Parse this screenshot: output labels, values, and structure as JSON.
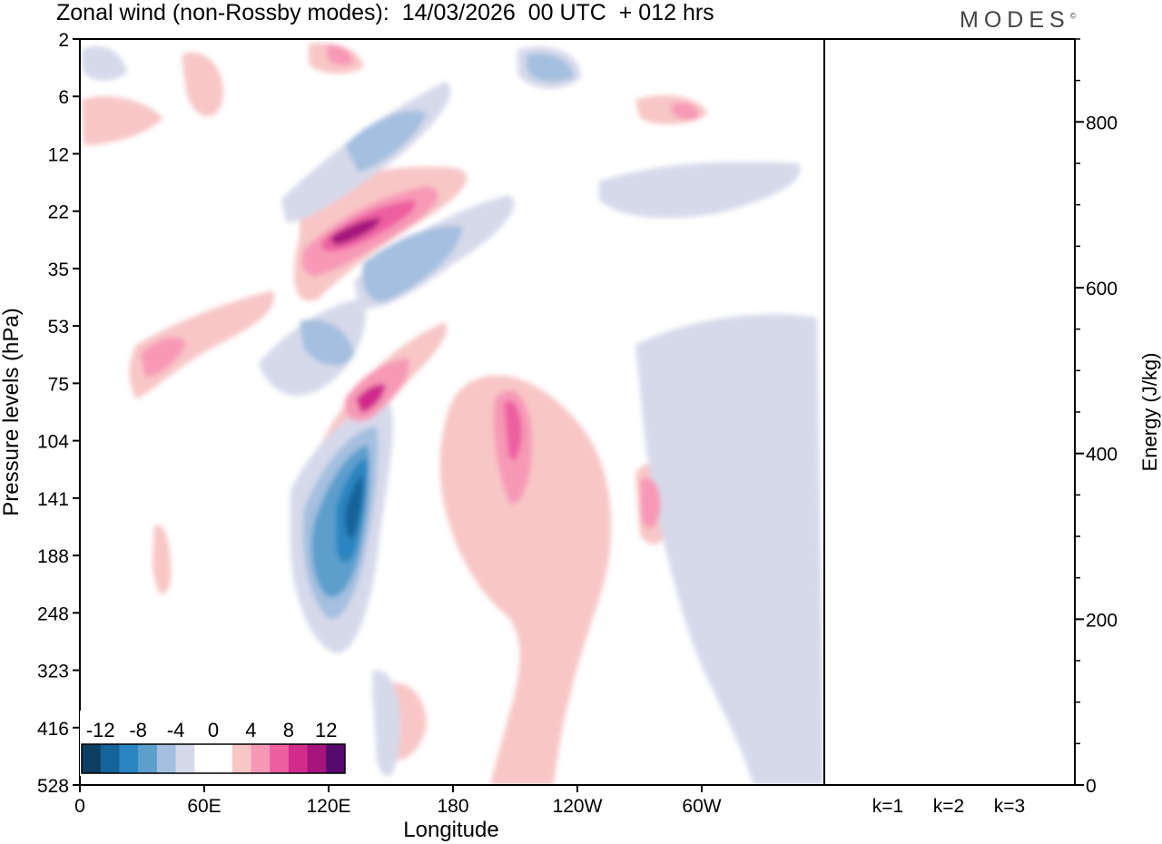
{
  "chart_data": [
    {
      "type": "heatmap",
      "title": "Zonal wind (non-Rossby modes):  14/03/2026  00 UTC  + 012 hrs",
      "xlabel": "Longitude",
      "ylabel": "Pressure levels (hPa)",
      "x_ticks": [
        "0",
        "60E",
        "120E",
        "180",
        "120W",
        "60W"
      ],
      "y_ticks": [
        "2",
        "6",
        "12",
        "22",
        "35",
        "53",
        "75",
        "104",
        "141",
        "188",
        "248",
        "323",
        "416",
        "528"
      ],
      "colorbar": {
        "labels": [
          "-12",
          "-8",
          "-4",
          "0",
          "4",
          "8",
          "12"
        ],
        "colors": [
          "#0d3f63",
          "#16629a",
          "#2b85c0",
          "#5c9fcd",
          "#a4bfdf",
          "#d6d9ea",
          "#ffffff",
          "#ffffff",
          "#f8c6c6",
          "#f799b6",
          "#ee5fa0",
          "#d12c8c",
          "#a6147d",
          "#560a6c"
        ]
      },
      "features": [
        {
          "kind": "negative-jet",
          "center_lon": 130,
          "center_level": "141-188",
          "value": -14
        },
        {
          "kind": "positive-jet",
          "center_lon": 135,
          "center_level": "22-35",
          "value": 12
        },
        {
          "kind": "positive-jet",
          "center_lon": 138,
          "center_level": "75-104",
          "value": 10
        },
        {
          "kind": "positive-band",
          "center_lon": 205,
          "center_level": "75-141",
          "value": 8
        }
      ]
    },
    {
      "type": "bar",
      "ylabel": "Energy (J/kg)",
      "categories": [
        "k=1",
        "k=2",
        "k=3"
      ],
      "values": [
        1,
        1,
        1
      ],
      "ylim": [
        0,
        900
      ],
      "y_ticks": [
        "0",
        "200",
        "400",
        "600",
        "800"
      ]
    }
  ],
  "logo_text": "MODES",
  "logo_mark": "©"
}
